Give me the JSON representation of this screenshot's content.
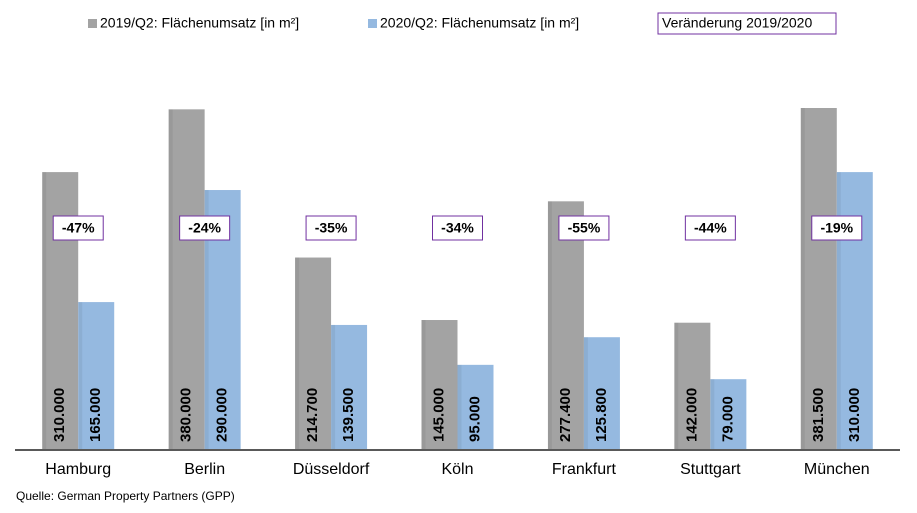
{
  "chart_data": {
    "type": "bar",
    "categories": [
      "Hamburg",
      "Berlin",
      "Düsseldorf",
      "Köln",
      "Frankfurt",
      "Stuttgart",
      "München"
    ],
    "series": [
      {
        "name": "2019/Q2: Flächenumsatz [in m²]",
        "color": "#a3a3a3",
        "values": [
          310000,
          380000,
          214700,
          145000,
          277400,
          142000,
          381500
        ],
        "value_labels": [
          "310.000",
          "380.000",
          "214.700",
          "145.000",
          "277.400",
          "142.000",
          "381.500"
        ]
      },
      {
        "name": "2020/Q2: Flächenumsatz [in m²]",
        "color": "#95b9e0",
        "values": [
          165000,
          290000,
          139500,
          95000,
          125800,
          79000,
          310000
        ],
        "value_labels": [
          "165.000",
          "290.000",
          "139.500",
          "95.000",
          "125.800",
          "79.000",
          "310.000"
        ]
      }
    ],
    "change_name": "Veränderung 2019/2020",
    "change_labels": [
      "-47%",
      "-24%",
      "-35%",
      "-34%",
      "-55%",
      "-44%",
      "-19%"
    ],
    "change_color": "#7030a0",
    "source": "Quelle: German Property Partners (GPP)"
  }
}
